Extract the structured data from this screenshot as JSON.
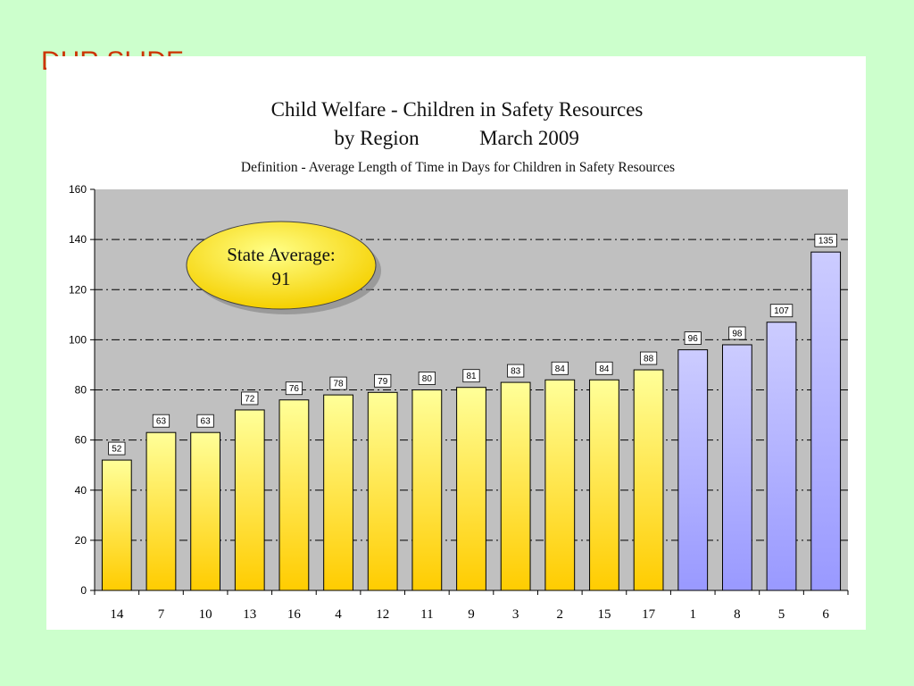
{
  "slide": {
    "title": "DHR SLIDE"
  },
  "chart_data": {
    "type": "bar",
    "title": "Child Welfare - Children in Safety Resources",
    "subtitle_left": "by Region",
    "subtitle_right": "March 2009",
    "definition": "Definition - Average Length of Time in Days for Children in Safety Resources",
    "categories": [
      "14",
      "7",
      "10",
      "13",
      "16",
      "4",
      "12",
      "11",
      "9",
      "3",
      "2",
      "15",
      "17",
      "1",
      "8",
      "5",
      "6"
    ],
    "values": [
      52,
      63,
      63,
      72,
      76,
      78,
      79,
      80,
      81,
      83,
      84,
      84,
      88,
      96,
      98,
      107,
      135
    ],
    "bar_groups": [
      "yellow",
      "yellow",
      "yellow",
      "yellow",
      "yellow",
      "yellow",
      "yellow",
      "yellow",
      "yellow",
      "yellow",
      "yellow",
      "yellow",
      "yellow",
      "blue",
      "blue",
      "blue",
      "blue"
    ],
    "ylim": [
      0,
      160
    ],
    "yticks": [
      0,
      20,
      40,
      60,
      80,
      100,
      120,
      140,
      160
    ],
    "grid": true,
    "xlabel": "",
    "ylabel": "",
    "annotation": {
      "line1": "State Average:",
      "line2": "91"
    },
    "colors": {
      "plot_bg": "#c0c0c0",
      "yellow_top": "#ffff99",
      "yellow_bottom": "#ffcc00",
      "blue_top": "#ccccff",
      "blue_bottom": "#9999ff",
      "oval_light": "#ffff88",
      "oval_dark": "#f5d000"
    }
  }
}
